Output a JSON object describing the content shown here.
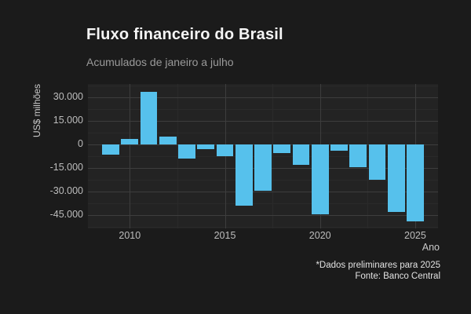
{
  "header": {
    "title": "Fluxo financeiro do Brasil",
    "subtitle": "Acumulados de janeiro a julho"
  },
  "chart_data": {
    "type": "bar",
    "title": "Fluxo financeiro do Brasil",
    "subtitle": "Acumulados de janeiro a julho",
    "xlabel": "Ano",
    "ylabel": "US$ milhões",
    "x": [
      2009,
      2010,
      2011,
      2012,
      2013,
      2014,
      2015,
      2016,
      2017,
      2018,
      2019,
      2020,
      2021,
      2022,
      2023,
      2024,
      2025
    ],
    "values": [
      -6500,
      3500,
      33500,
      5000,
      -9000,
      -3000,
      -7500,
      -39000,
      -29500,
      -5500,
      -13000,
      -44500,
      -4000,
      -14500,
      -22500,
      -43000,
      -49000
    ],
    "ylim": [
      -53350,
      38650
    ],
    "xlim": [
      2007.8,
      2026.2
    ],
    "yticks": [
      {
        "value": 30000,
        "label": "30.000"
      },
      {
        "value": 15000,
        "label": "15.000"
      },
      {
        "value": 0,
        "label": "0"
      },
      {
        "value": -15000,
        "label": "-15.000"
      },
      {
        "value": -30000,
        "label": "-30.000"
      },
      {
        "value": -45000,
        "label": "-45.000"
      }
    ],
    "yticks_minor": [
      37500,
      22500,
      7500,
      -7500,
      -22500,
      -37500,
      -52500
    ],
    "xticks": [
      {
        "value": 2010,
        "label": "2010"
      },
      {
        "value": 2015,
        "label": "2015"
      },
      {
        "value": 2020,
        "label": "2020"
      },
      {
        "value": 2025,
        "label": "2025"
      }
    ],
    "xticks_minor": [
      2012.5,
      2017.5,
      2022.5
    ],
    "bar_color": "#56C1EC",
    "bar_rel_width": 0.9,
    "grid": "on",
    "legend": "none"
  },
  "footer": {
    "note": "*Dados preliminares para 2025",
    "source": "Fonte: Banco Central"
  }
}
